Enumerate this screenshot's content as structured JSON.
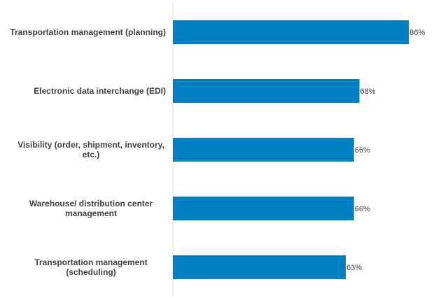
{
  "chart_data": {
    "type": "bar",
    "orientation": "horizontal",
    "categories": [
      [
        "Transportation management (planning)"
      ],
      [
        "Electronic data interchange (EDI)"
      ],
      [
        "Visibility (order, shipment, inventory,",
        "etc.)"
      ],
      [
        "Warehouse/ distribution center",
        "management"
      ],
      [
        "Transportation  management",
        "(scheduling)"
      ]
    ],
    "values": [
      86,
      68,
      66,
      66,
      63
    ],
    "value_labels": [
      "86%",
      "68%",
      "66%",
      "66%",
      "63%"
    ],
    "xlim": [
      0,
      100
    ],
    "bar_color": "#0080C0",
    "axis_color": "#D9D9D9",
    "text_color": "#404040",
    "grid": false,
    "legend": "none",
    "title": "",
    "xlabel": "",
    "ylabel": ""
  }
}
